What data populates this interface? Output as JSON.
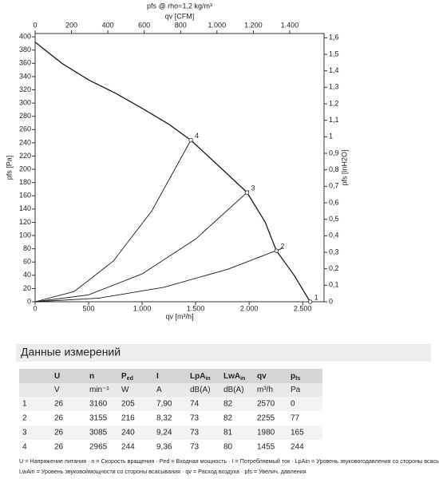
{
  "chart_data": {
    "type": "line",
    "title": "pfs @ rho=1,2 kg/m³",
    "xlabel": "qv [m³/h]",
    "x2label": "qv [CFM]",
    "ylabel": "pfs [Pa]",
    "y2label": "pfs [inH2O]",
    "xlim": [
      0,
      2700
    ],
    "x2lim": [
      0,
      1589
    ],
    "ylim": [
      0,
      405
    ],
    "y2lim": [
      0,
      1.626
    ],
    "xticks": [
      0,
      500,
      {
        "value": 1000,
        "label": "1.000"
      },
      {
        "value": 1500,
        "label": "1.500"
      },
      {
        "value": 2000,
        "label": "2.000"
      },
      {
        "value": 2500,
        "label": "2.500"
      }
    ],
    "x2ticks": [
      0,
      200,
      400,
      600,
      800,
      {
        "value": 1000,
        "label": "1.000"
      },
      {
        "value": 1200,
        "label": "1.200"
      },
      {
        "value": 1400,
        "label": "1.400"
      }
    ],
    "yticks": [
      0,
      20,
      40,
      60,
      80,
      100,
      120,
      140,
      160,
      180,
      200,
      220,
      240,
      260,
      280,
      300,
      320,
      340,
      360,
      380,
      400
    ],
    "y2ticks": [
      0,
      {
        "value": 0.1,
        "label": "0,1"
      },
      {
        "value": 0.2,
        "label": "0,2"
      },
      {
        "value": 0.3,
        "label": "0,3"
      },
      {
        "value": 0.4,
        "label": "0,4"
      },
      {
        "value": 0.5,
        "label": "0,5"
      },
      {
        "value": 0.6,
        "label": "0,6"
      },
      {
        "value": 0.7,
        "label": "0,7"
      },
      {
        "value": 0.8,
        "label": "0,8"
      },
      {
        "value": 0.9,
        "label": "0,9"
      },
      1,
      {
        "value": 1.1,
        "label": "1,1"
      },
      {
        "value": 1.2,
        "label": "1,2"
      },
      {
        "value": 1.3,
        "label": "1,3"
      },
      {
        "value": 1.4,
        "label": "1,4"
      },
      {
        "value": 1.5,
        "label": "1,5"
      },
      {
        "value": 1.6,
        "label": "1,6"
      }
    ],
    "grid": false,
    "series": [
      {
        "color": "#1a1a1a",
        "x": [
          0,
          250,
          500,
          750,
          1000,
          1250,
          1455,
          1750,
          1980,
          2150,
          2255,
          2420,
          2570
        ],
        "values": [
          392,
          360,
          335,
          315,
          292,
          268,
          244,
          200,
          165,
          120,
          77,
          40,
          0
        ]
      },
      {
        "color": "#1a1a1a",
        "x": [
          0,
          365,
          730,
          1090,
          1455
        ],
        "values": [
          0,
          15.4,
          61.4,
          137,
          244
        ]
      },
      {
        "color": "#1a1a1a",
        "x": [
          0,
          500,
          1000,
          1500,
          1980,
          2000
        ],
        "values": [
          0,
          10.5,
          42.1,
          94.7,
          165,
          168
        ]
      },
      {
        "color": "#1a1a1a",
        "x": [
          0,
          600,
          1200,
          1800,
          2320
        ],
        "values": [
          0,
          5.5,
          21.8,
          49.1,
          81.5
        ]
      }
    ],
    "points": [
      {
        "label": "1",
        "x": 2570,
        "y": 0
      },
      {
        "label": "2",
        "x": 2255,
        "y": 77
      },
      {
        "label": "3",
        "x": 1980,
        "y": 165
      },
      {
        "label": "4",
        "x": 1455,
        "y": 244
      }
    ]
  },
  "section_title": "Данные измерений",
  "table": {
    "headers": [
      {
        "text": ""
      },
      {
        "text": "U"
      },
      {
        "text": "n"
      },
      {
        "text": "P",
        "sub": "ed"
      },
      {
        "text": "I"
      },
      {
        "text": "LpA",
        "sub": "in"
      },
      {
        "text": "LwA",
        "sub": "in"
      },
      {
        "text": "qv"
      },
      {
        "text": "p",
        "sub": "fs"
      }
    ],
    "units": [
      "",
      "V",
      "min⁻¹",
      "W",
      "A",
      "dB(A)",
      "dB(A)",
      "m³/h",
      "Pa"
    ],
    "rows": [
      [
        "1",
        "26",
        "3160",
        "205",
        "7,90",
        "74",
        "82",
        "2570",
        "0"
      ],
      [
        "2",
        "26",
        "3155",
        "216",
        "8,32",
        "73",
        "82",
        "2255",
        "77"
      ],
      [
        "3",
        "26",
        "3085",
        "240",
        "9,24",
        "73",
        "81",
        "1980",
        "165"
      ],
      [
        "4",
        "26",
        "2965",
        "244",
        "9,36",
        "73",
        "80",
        "1455",
        "244"
      ]
    ]
  },
  "footnotes": [
    "U = Напряжение питания · n = Скорость вращения · Ped = Входная мощность · I = Потребляемый ток · LpAin = Уровень звуковогодавления со стороны всасывания",
    "LwAin = Уровень звуковоймощности со стороны всасывания · qv = Расход воздуха · pfs = Увелич. давления"
  ]
}
